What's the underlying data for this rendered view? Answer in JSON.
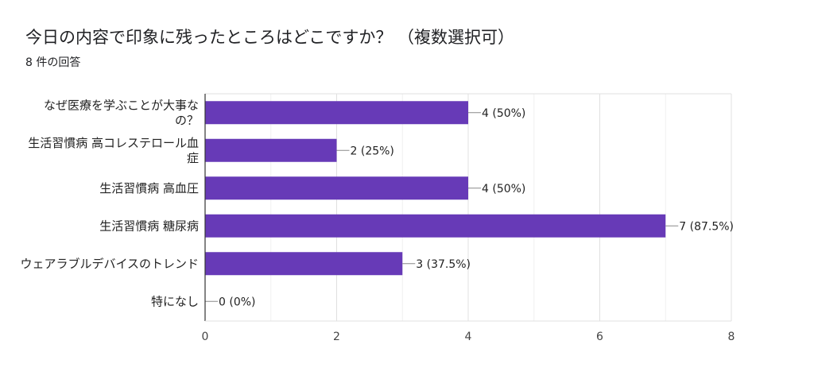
{
  "header": {
    "title": "今日の内容で印象に残ったところはどこですか？ （複数選択可）",
    "subtitle": "8 件の回答"
  },
  "chart_data": {
    "type": "bar",
    "orientation": "horizontal",
    "categories": [
      [
        "なぜ医療を学ぶことが大事な",
        "の？"
      ],
      [
        "生活習慣病 高コレステロール血",
        "症"
      ],
      [
        "生活習慣病 高血圧"
      ],
      [
        "生活習慣病 糖尿病"
      ],
      [
        "ウェアラブルデバイスのトレンド"
      ],
      [
        "特になし"
      ]
    ],
    "values": [
      4,
      2,
      4,
      7,
      3,
      0
    ],
    "data_labels": [
      "4 (50%)",
      "2 (25%)",
      "4 (50%)",
      "7 (87.5%)",
      "3 (37.5%)",
      "0 (0%)"
    ],
    "xlim": [
      0,
      8
    ],
    "xticks": [
      0,
      2,
      4,
      6,
      8
    ],
    "grid": true,
    "bar_color": "#673ab7"
  }
}
